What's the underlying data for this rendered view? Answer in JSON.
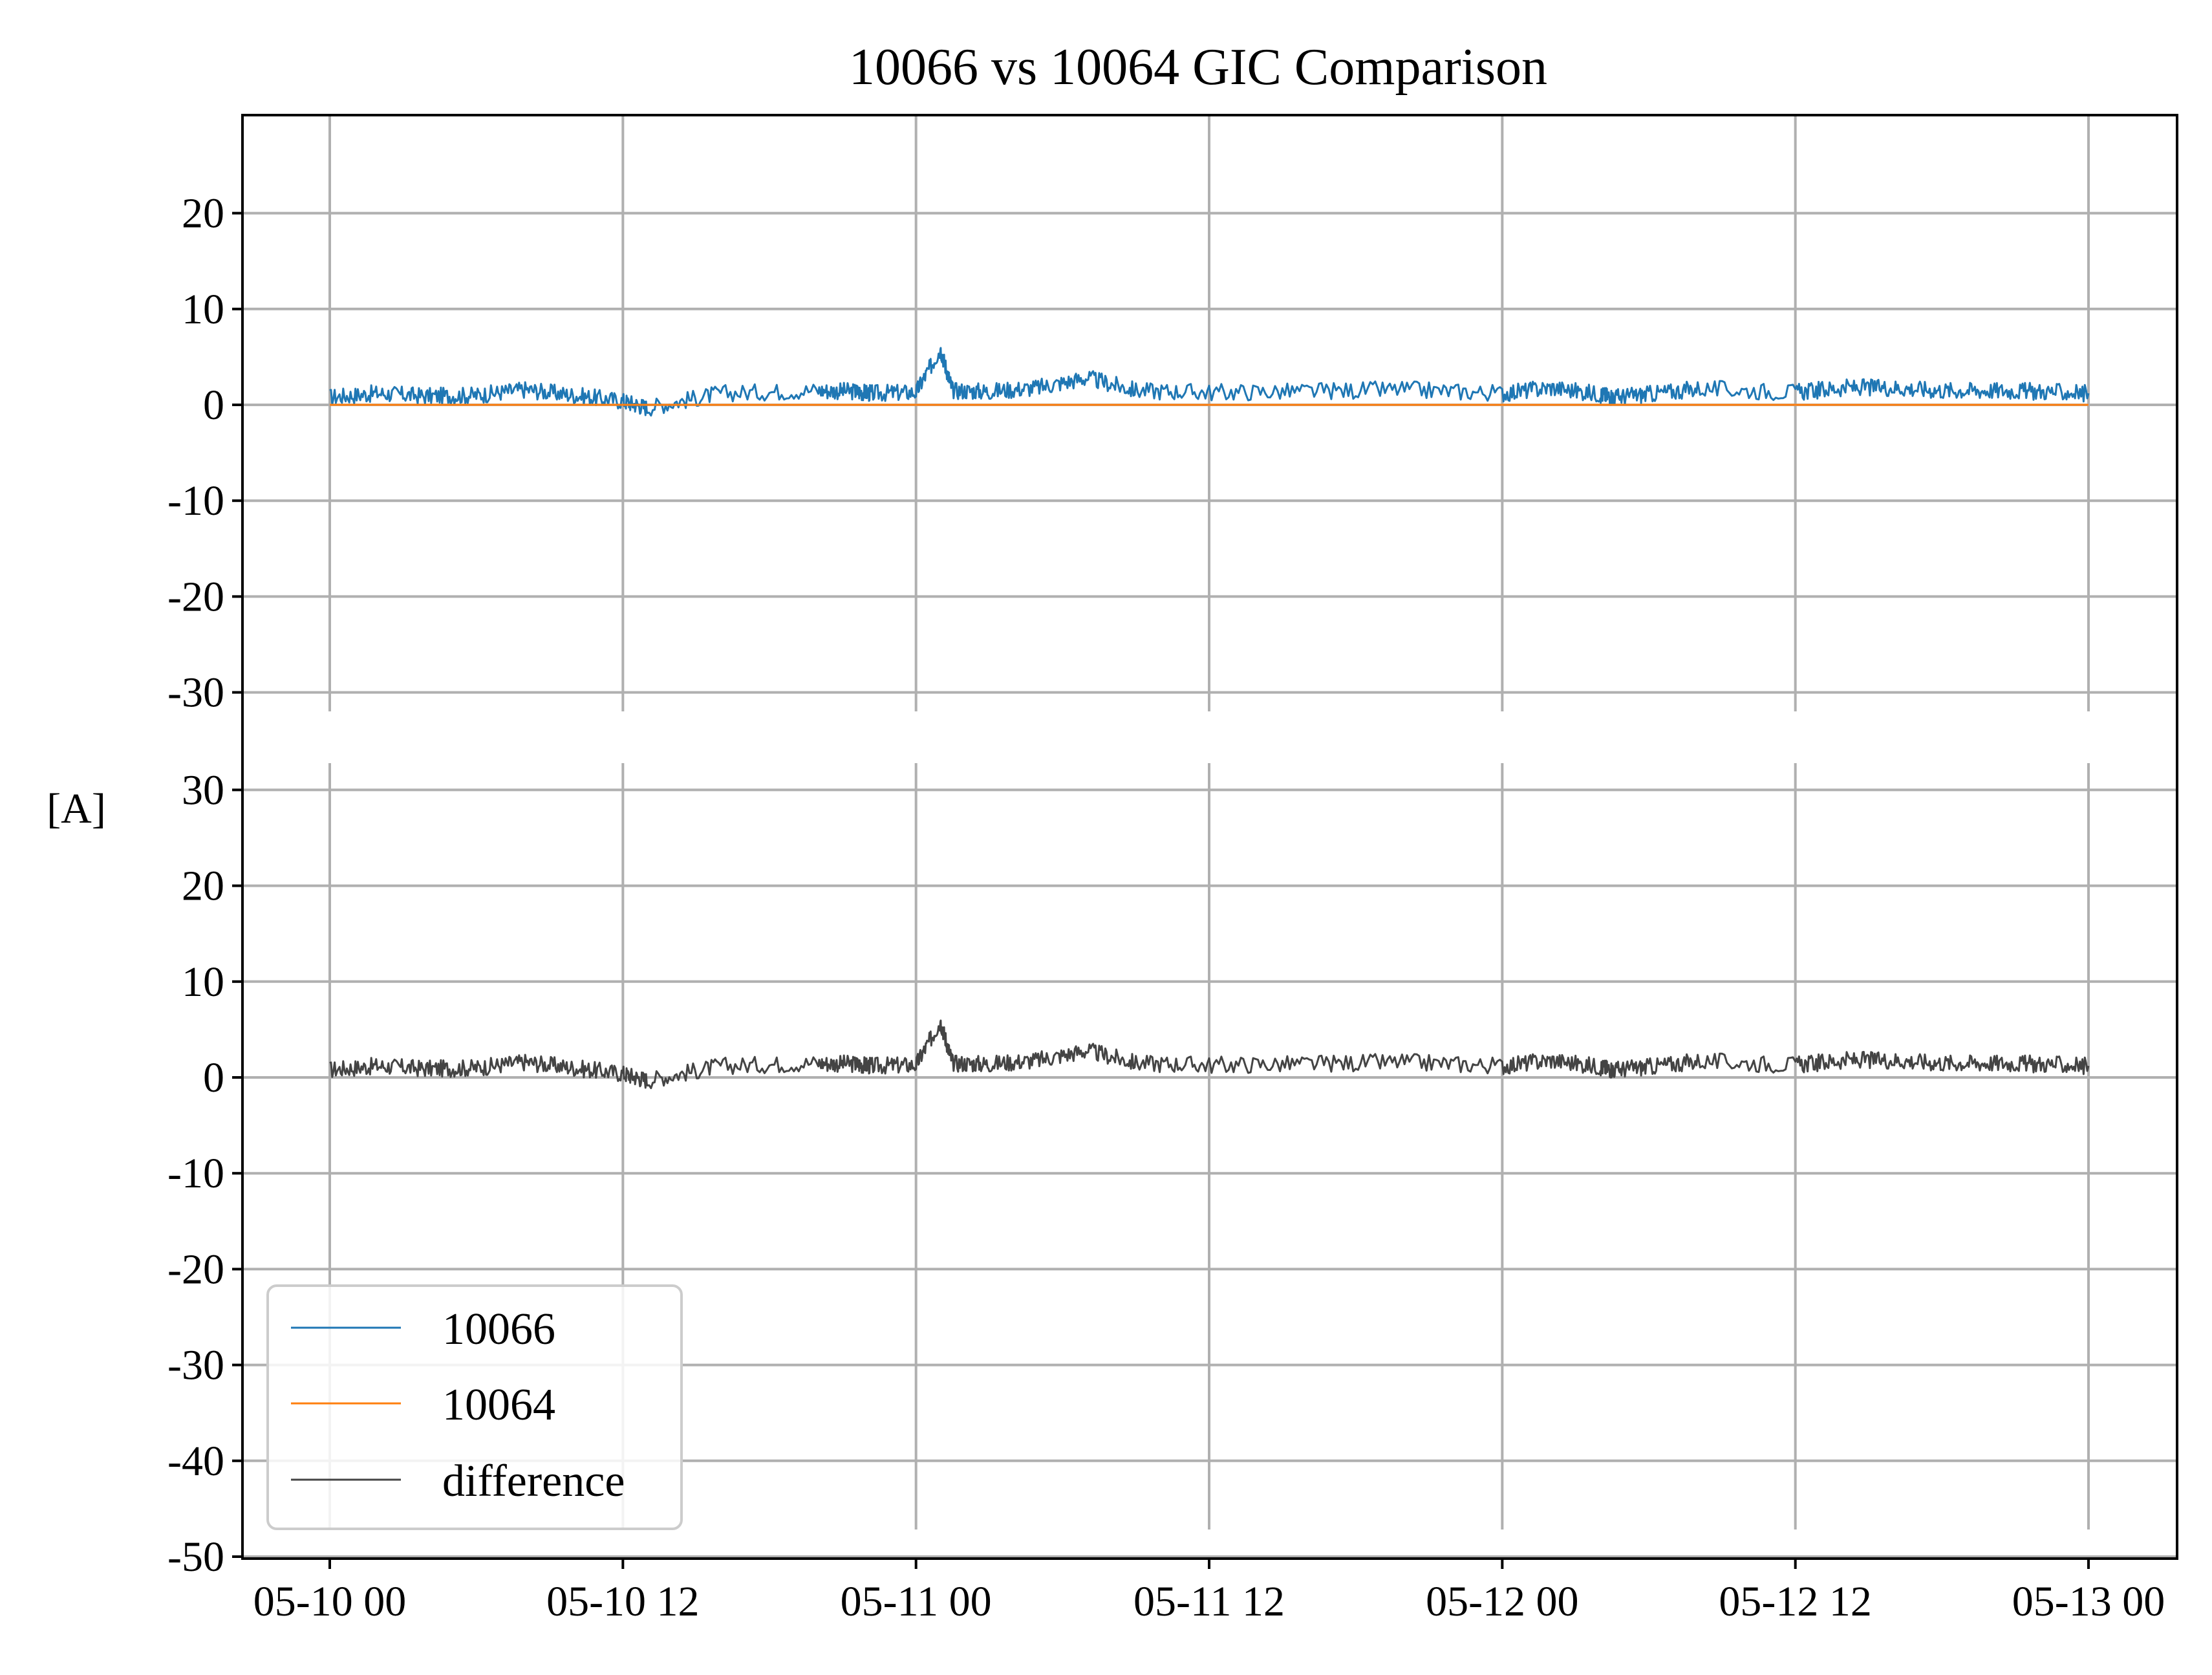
{
  "chart_data": {
    "type": "line",
    "title": "10066 vs 10064 GIC Comparison",
    "ylabel": "[A]",
    "xlabel": "",
    "x_range": [
      "05-10 00",
      "05-13 00"
    ],
    "x_tick_labels": [
      "05-10 00",
      "05-10 12",
      "05-11 00",
      "05-11 12",
      "05-12 00",
      "05-12 12",
      "05-13 00"
    ],
    "x_tick_hours": [
      0,
      12,
      24,
      36,
      48,
      60,
      72
    ],
    "x_lim_hours": [
      -3.6,
      75.6
    ],
    "grid": true,
    "legend_position": "lower-left",
    "colors": {
      "10066": "#1f77b4",
      "10064": "#ff7f0e",
      "difference": "#444444",
      "grid": "#b0b0b0"
    },
    "series": [
      {
        "name": "10066",
        "panel": "upper",
        "color": "#1f77b4",
        "x_hours": [
          0,
          2,
          4,
          6,
          8,
          10,
          12,
          13,
          16,
          20,
          21.5,
          22.2,
          24,
          25,
          25.5,
          27,
          29,
          31,
          33,
          36,
          40,
          44,
          48,
          50,
          52,
          52.6,
          54,
          56,
          60,
          62,
          64,
          66,
          68,
          70,
          72
        ],
        "values": [
          0.8,
          1.2,
          0.9,
          1.0,
          1.6,
          1.0,
          0.4,
          -0.3,
          1.2,
          1.5,
          1.4,
          1.2,
          1.3,
          5.8,
          1.5,
          1.4,
          1.8,
          2.8,
          1.5,
          1.3,
          1.4,
          1.6,
          1.2,
          1.8,
          1.1,
          0.8,
          1.1,
          1.7,
          1.3,
          1.8,
          1.8,
          1.5,
          1.5,
          1.4,
          1.2
        ]
      },
      {
        "name": "10064",
        "panel": "upper",
        "color": "#ff7f0e",
        "x_hours": [
          0,
          72
        ],
        "values": [
          0,
          0
        ]
      },
      {
        "name": "difference",
        "panel": "lower",
        "color": "#444444",
        "x_hours": [
          0,
          2,
          4,
          6,
          8,
          10,
          12,
          13,
          16,
          20,
          21.5,
          22.2,
          24,
          25,
          25.5,
          27,
          29,
          31,
          33,
          36,
          40,
          44,
          48,
          50,
          52,
          52.6,
          54,
          56,
          60,
          62,
          64,
          66,
          68,
          70,
          72
        ],
        "values": [
          0.8,
          1.2,
          0.9,
          1.0,
          1.6,
          1.0,
          0.4,
          -0.3,
          1.2,
          1.5,
          1.4,
          1.2,
          1.3,
          5.8,
          1.5,
          1.4,
          1.8,
          2.8,
          1.5,
          1.3,
          1.4,
          1.6,
          1.2,
          1.8,
          1.1,
          0.8,
          1.1,
          1.7,
          1.3,
          1.8,
          1.8,
          1.5,
          1.5,
          1.4,
          1.2
        ]
      }
    ],
    "panels": {
      "upper": {
        "ylim": [
          -30,
          30
        ],
        "yticks": [
          20,
          10,
          0,
          -10,
          -20,
          -30
        ],
        "ytick_labels": [
          "20",
          "10",
          "0",
          "-10",
          "-20",
          "-30"
        ]
      },
      "lower": {
        "ylim": [
          -50,
          33
        ],
        "yticks": [
          30,
          20,
          10,
          0,
          -10,
          -20,
          -30,
          -40,
          -50
        ],
        "ytick_labels": [
          "30",
          "20",
          "10",
          "0",
          "-10",
          "-20",
          "-30",
          "-40",
          "-50"
        ]
      }
    },
    "legend": [
      "10066",
      "10064",
      "difference"
    ]
  }
}
